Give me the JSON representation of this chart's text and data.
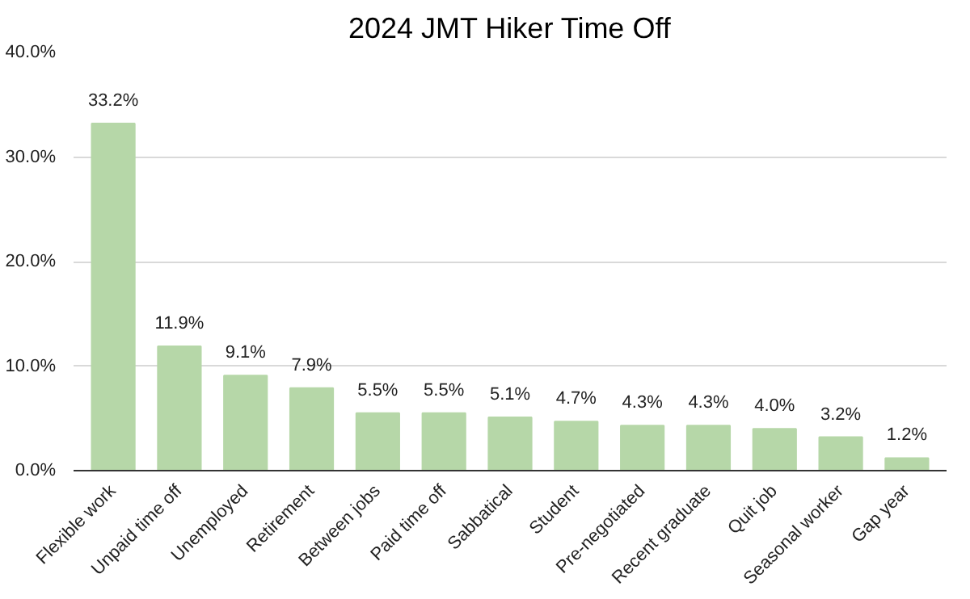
{
  "chart_data": {
    "type": "bar",
    "title": "2024 JMT Hiker Time Off",
    "categories": [
      "Flexible work",
      "Unpaid time off",
      "Unemployed",
      "Retirement",
      "Between jobs",
      "Paid time off",
      "Sabbatical",
      "Student",
      "Pre-negotiated",
      "Recent graduate",
      "Quit job",
      "Seasonal worker",
      "Gap year"
    ],
    "values": [
      33.2,
      11.9,
      9.1,
      7.9,
      5.5,
      5.5,
      5.1,
      4.7,
      4.3,
      4.3,
      4.0,
      3.2,
      1.2
    ],
    "value_labels": [
      "33.2%",
      "11.9%",
      "9.1%",
      "7.9%",
      "5.5%",
      "5.5%",
      "5.1%",
      "4.7%",
      "4.3%",
      "4.3%",
      "4.0%",
      "3.2%",
      "1.2%"
    ],
    "color": "#b6d7a8",
    "ylim": [
      0,
      40
    ],
    "yticks": [
      {
        "value": 0,
        "label": "0.0%"
      },
      {
        "value": 10,
        "label": "10.0%"
      },
      {
        "value": 20,
        "label": "20.0%"
      },
      {
        "value": 30,
        "label": "30.0%"
      },
      {
        "value": 40,
        "label": "40.0%"
      }
    ],
    "grid": "y"
  }
}
